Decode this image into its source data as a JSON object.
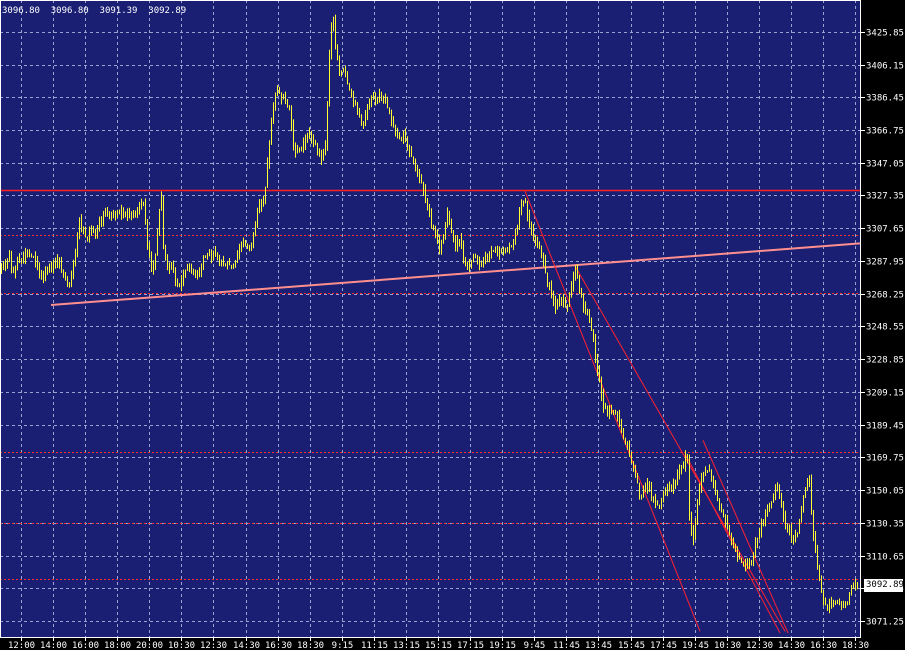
{
  "header": {
    "ohlc": "3096.80  3096.80  3091.39  3092.89"
  },
  "last_price_label": "3092.89",
  "colors": {
    "background": "#1a1f73",
    "grid": "#9aa2cf",
    "candle": "#ffff33",
    "support_line": "#ff8f8f",
    "horizontal_line": "#ff2020",
    "dotted_level": "#ff3030",
    "trend_channel": "#ff2030",
    "axis_text": "#ffffff",
    "frame": "#ffffff"
  },
  "chart_data": {
    "type": "candlestick",
    "title": "",
    "xlabel": "",
    "ylabel": "",
    "ylim": [
      3061.0,
      3445.0
    ],
    "y_ticks": [
      3425.85,
      3406.15,
      3386.45,
      3366.75,
      3347.05,
      3327.35,
      3307.65,
      3287.95,
      3268.25,
      3248.55,
      3228.85,
      3209.15,
      3189.45,
      3169.75,
      3150.05,
      3130.35,
      3110.65,
      3090.95,
      3071.25
    ],
    "x_labels": [
      "12:00",
      "14:00",
      "16:00",
      "18:00",
      "20:00",
      "10:30",
      "12:30",
      "14:30",
      "16:30",
      "18:30",
      "9:15",
      "11:15",
      "13:15",
      "15:15",
      "17:15",
      "19:15",
      "9:45",
      "11:45",
      "13:45",
      "15:45",
      "17:45",
      "19:45",
      "10:30",
      "12:30",
      "14:30",
      "16:30",
      "18:30"
    ],
    "grid": true,
    "last_price": 3092.89,
    "path": [
      [
        0,
        3279
      ],
      [
        5,
        3286
      ],
      [
        8,
        3290
      ],
      [
        10,
        3294
      ],
      [
        12,
        3284
      ],
      [
        15,
        3280
      ],
      [
        18,
        3290
      ],
      [
        22,
        3289
      ],
      [
        26,
        3293
      ],
      [
        30,
        3292
      ],
      [
        34,
        3290
      ],
      [
        38,
        3284
      ],
      [
        42,
        3278
      ],
      [
        46,
        3282
      ],
      [
        50,
        3284
      ],
      [
        54,
        3285
      ],
      [
        58,
        3289
      ],
      [
        62,
        3282
      ],
      [
        66,
        3277
      ],
      [
        70,
        3274
      ],
      [
        74,
        3286
      ],
      [
        77,
        3300
      ],
      [
        80,
        3312
      ],
      [
        84,
        3305
      ],
      [
        88,
        3302
      ],
      [
        92,
        3308
      ],
      [
        96,
        3302
      ],
      [
        100,
        3310
      ],
      [
        104,
        3315
      ],
      [
        108,
        3318
      ],
      [
        112,
        3313
      ],
      [
        116,
        3317
      ],
      [
        120,
        3319
      ],
      [
        124,
        3315
      ],
      [
        128,
        3318
      ],
      [
        132,
        3315
      ],
      [
        136,
        3316
      ],
      [
        140,
        3322
      ],
      [
        144,
        3323
      ],
      [
        148,
        3298
      ],
      [
        152,
        3284
      ],
      [
        156,
        3290
      ],
      [
        160,
        3320
      ],
      [
        162,
        3326
      ],
      [
        164,
        3296
      ],
      [
        168,
        3284
      ],
      [
        172,
        3286
      ],
      [
        176,
        3276
      ],
      [
        180,
        3273
      ],
      [
        184,
        3280
      ],
      [
        188,
        3286
      ],
      [
        192,
        3282
      ],
      [
        196,
        3280
      ],
      [
        200,
        3283
      ],
      [
        204,
        3290
      ],
      [
        208,
        3292
      ],
      [
        212,
        3289
      ],
      [
        216,
        3292
      ],
      [
        220,
        3289
      ],
      [
        224,
        3285
      ],
      [
        228,
        3287
      ],
      [
        232,
        3284
      ],
      [
        236,
        3289
      ],
      [
        240,
        3295
      ],
      [
        244,
        3300
      ],
      [
        248,
        3296
      ],
      [
        252,
        3298
      ],
      [
        256,
        3312
      ],
      [
        260,
        3322
      ],
      [
        264,
        3325
      ],
      [
        266,
        3332
      ],
      [
        270,
        3360
      ],
      [
        274,
        3381
      ],
      [
        278,
        3392
      ],
      [
        282,
        3386
      ],
      [
        286,
        3384
      ],
      [
        290,
        3378
      ],
      [
        294,
        3358
      ],
      [
        298,
        3352
      ],
      [
        302,
        3356
      ],
      [
        306,
        3361
      ],
      [
        310,
        3364
      ],
      [
        314,
        3360
      ],
      [
        318,
        3354
      ],
      [
        322,
        3350
      ],
      [
        326,
        3356
      ],
      [
        330,
        3412
      ],
      [
        333,
        3438
      ],
      [
        336,
        3418
      ],
      [
        340,
        3400
      ],
      [
        344,
        3405
      ],
      [
        348,
        3396
      ],
      [
        352,
        3388
      ],
      [
        356,
        3382
      ],
      [
        360,
        3376
      ],
      [
        364,
        3370
      ],
      [
        368,
        3380
      ],
      [
        372,
        3384
      ],
      [
        376,
        3385
      ],
      [
        380,
        3390
      ],
      [
        384,
        3387
      ],
      [
        388,
        3380
      ],
      [
        392,
        3372
      ],
      [
        396,
        3367
      ],
      [
        400,
        3362
      ],
      [
        404,
        3365
      ],
      [
        408,
        3358
      ],
      [
        412,
        3352
      ],
      [
        416,
        3345
      ],
      [
        420,
        3338
      ],
      [
        424,
        3330
      ],
      [
        428,
        3320
      ],
      [
        432,
        3310
      ],
      [
        436,
        3305
      ],
      [
        440,
        3295
      ],
      [
        444,
        3302
      ],
      [
        448,
        3316
      ],
      [
        452,
        3306
      ],
      [
        456,
        3296
      ],
      [
        460,
        3302
      ],
      [
        464,
        3290
      ],
      [
        468,
        3284
      ],
      [
        472,
        3288
      ],
      [
        476,
        3292
      ],
      [
        480,
        3287
      ],
      [
        484,
        3289
      ],
      [
        488,
        3291
      ],
      [
        492,
        3293
      ],
      [
        496,
        3295
      ],
      [
        500,
        3292
      ],
      [
        504,
        3296
      ],
      [
        508,
        3295
      ],
      [
        512,
        3297
      ],
      [
        516,
        3304
      ],
      [
        520,
        3316
      ],
      [
        523,
        3326
      ],
      [
        526,
        3322
      ],
      [
        528,
        3315
      ],
      [
        532,
        3306
      ],
      [
        536,
        3298
      ],
      [
        540,
        3294
      ],
      [
        544,
        3288
      ],
      [
        548,
        3275
      ],
      [
        552,
        3268
      ],
      [
        556,
        3260
      ],
      [
        560,
        3264
      ],
      [
        564,
        3262
      ],
      [
        568,
        3260
      ],
      [
        572,
        3272
      ],
      [
        576,
        3284
      ],
      [
        580,
        3270
      ],
      [
        584,
        3262
      ],
      [
        588,
        3256
      ],
      [
        592,
        3248
      ],
      [
        596,
        3230
      ],
      [
        600,
        3215
      ],
      [
        604,
        3200
      ],
      [
        608,
        3196
      ],
      [
        612,
        3199
      ],
      [
        616,
        3196
      ],
      [
        620,
        3192
      ],
      [
        624,
        3180
      ],
      [
        628,
        3176
      ],
      [
        632,
        3168
      ],
      [
        636,
        3160
      ],
      [
        640,
        3146
      ],
      [
        644,
        3150
      ],
      [
        648,
        3154
      ],
      [
        652,
        3146
      ],
      [
        656,
        3142
      ],
      [
        660,
        3140
      ],
      [
        664,
        3148
      ],
      [
        668,
        3152
      ],
      [
        672,
        3150
      ],
      [
        676,
        3156
      ],
      [
        680,
        3162
      ],
      [
        684,
        3164
      ],
      [
        686,
        3172
      ],
      [
        688,
        3168
      ],
      [
        690,
        3135
      ],
      [
        694,
        3120
      ],
      [
        698,
        3145
      ],
      [
        702,
        3158
      ],
      [
        706,
        3160
      ],
      [
        710,
        3162
      ],
      [
        714,
        3154
      ],
      [
        718,
        3144
      ],
      [
        722,
        3138
      ],
      [
        726,
        3130
      ],
      [
        730,
        3124
      ],
      [
        734,
        3115
      ],
      [
        738,
        3112
      ],
      [
        742,
        3108
      ],
      [
        746,
        3104
      ],
      [
        750,
        3106
      ],
      [
        754,
        3112
      ],
      [
        758,
        3122
      ],
      [
        762,
        3128
      ],
      [
        766,
        3136
      ],
      [
        770,
        3142
      ],
      [
        774,
        3146
      ],
      [
        778,
        3152
      ],
      [
        782,
        3140
      ],
      [
        786,
        3130
      ],
      [
        790,
        3125
      ],
      [
        794,
        3120
      ],
      [
        798,
        3126
      ],
      [
        802,
        3138
      ],
      [
        806,
        3152
      ],
      [
        810,
        3158
      ],
      [
        813,
        3128
      ],
      [
        816,
        3112
      ],
      [
        820,
        3098
      ],
      [
        824,
        3082
      ],
      [
        828,
        3080
      ],
      [
        832,
        3082
      ],
      [
        836,
        3084
      ],
      [
        840,
        3083
      ],
      [
        844,
        3080
      ],
      [
        848,
        3083
      ],
      [
        852,
        3092
      ],
      [
        857,
        3093
      ]
    ],
    "horizontal_levels": [
      {
        "price": 3330.4,
        "style": "solid"
      },
      {
        "price": 3303.7,
        "style": "dotted"
      },
      {
        "price": 3268.6,
        "style": "dotted"
      },
      {
        "price": 3172.8,
        "style": "dotted"
      },
      {
        "price": 3130.2,
        "style": "dotted"
      },
      {
        "price": 3096.8,
        "style": "dotted"
      }
    ],
    "trendlines": [
      {
        "kind": "support",
        "from": [
          51,
          3261.4
        ],
        "to": [
          860,
          3298.5
        ]
      },
      {
        "kind": "channel",
        "from": [
          525,
          3330.0
        ],
        "to": [
          700,
          3065.0
        ]
      },
      {
        "kind": "channel",
        "from": [
          575,
          3285.0
        ],
        "to": [
          785,
          3065.0
        ]
      },
      {
        "kind": "channel",
        "from": [
          685,
          3172.0
        ],
        "to": [
          780,
          3064.0
        ]
      },
      {
        "kind": "channel",
        "from": [
          703,
          3180.0
        ],
        "to": [
          788,
          3064.0
        ]
      }
    ]
  }
}
